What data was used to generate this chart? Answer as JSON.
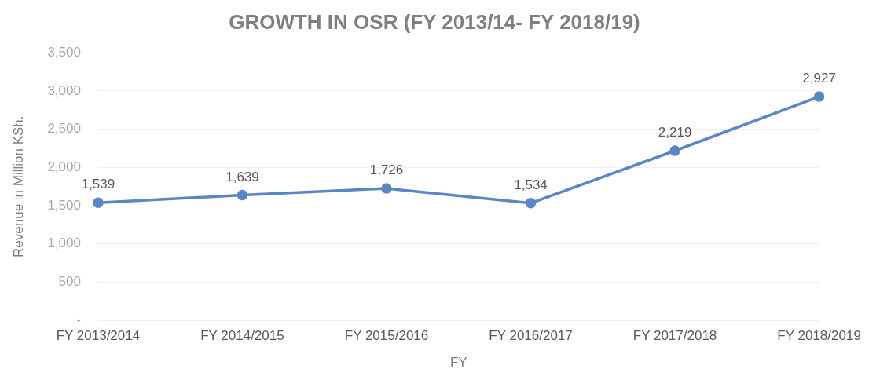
{
  "chart_data": {
    "type": "line",
    "title": "GROWTH IN OSR (FY 2013/14- FY 2018/19)",
    "xlabel": "FY",
    "ylabel": "Revenue in Million KSh.",
    "categories": [
      "FY 2013/2014",
      "FY 2014/2015",
      "FY 2015/2016",
      "FY 2016/2017",
      "FY 2017/2018",
      "FY 2018/2019"
    ],
    "values": [
      1539,
      1639,
      1726,
      1534,
      2219,
      2927
    ],
    "value_labels": [
      "1,539",
      "1,639",
      "1,726",
      "1,534",
      "2,219",
      "2,927"
    ],
    "color": "#5b86c6",
    "ylim": [
      0,
      3500
    ],
    "yticks": [
      {
        "value": 0,
        "label": "-"
      },
      {
        "value": 500,
        "label": "500"
      },
      {
        "value": 1000,
        "label": "1,000"
      },
      {
        "value": 1500,
        "label": "1,500"
      },
      {
        "value": 2000,
        "label": "2,000"
      },
      {
        "value": 2500,
        "label": "2,500"
      },
      {
        "value": 3000,
        "label": "3,000"
      },
      {
        "value": 3500,
        "label": "3,500"
      }
    ],
    "grid": "y",
    "marker": "circle",
    "line_style": "solid",
    "legend": false
  }
}
